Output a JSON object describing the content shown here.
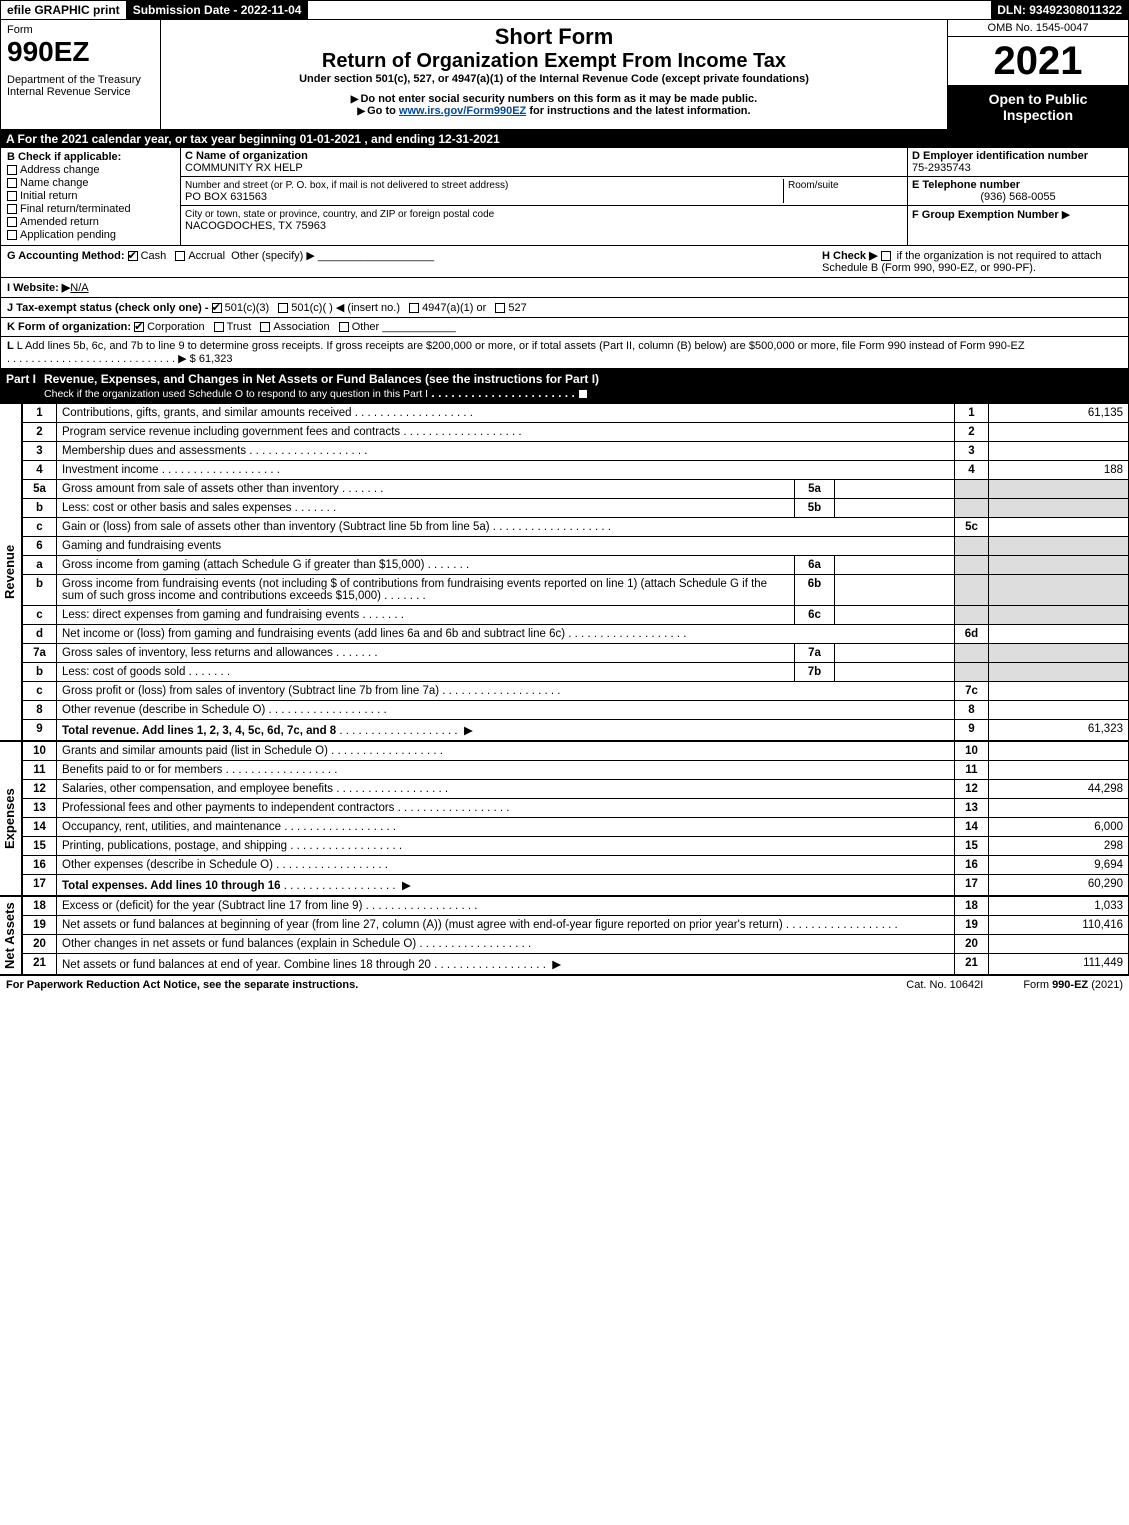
{
  "topbar": {
    "efile": "efile GRAPHIC print",
    "submission": "Submission Date - 2022-11-04",
    "dln": "DLN: 93492308011322"
  },
  "header": {
    "form_word": "Form",
    "form_no": "990EZ",
    "dept1": "Department of the Treasury",
    "dept2": "Internal Revenue Service",
    "short": "Short Form",
    "title": "Return of Organization Exempt From Income Tax",
    "sub1": "Under section 501(c), 527, or 4947(a)(1) of the Internal Revenue Code (except private foundations)",
    "sub2": "Do not enter social security numbers on this form as it may be made public.",
    "sub3_pre": "Go to ",
    "sub3_link": "www.irs.gov/Form990EZ",
    "sub3_post": " for instructions and the latest information.",
    "omb": "OMB No. 1545-0047",
    "year": "2021",
    "open": "Open to Public Inspection"
  },
  "row_a": "A  For the 2021 calendar year, or tax year beginning 01-01-2021 , and ending 12-31-2021",
  "sec_b": {
    "label": "B  Check if applicable:",
    "checks": [
      "Address change",
      "Name change",
      "Initial return",
      "Final return/terminated",
      "Amended return",
      "Application pending"
    ],
    "c_label": "C Name of organization",
    "c_name": "COMMUNITY RX HELP",
    "addr_label": "Number and street (or P. O. box, if mail is not delivered to street address)",
    "addr": "PO BOX 631563",
    "room_label": "Room/suite",
    "city_label": "City or town, state or province, country, and ZIP or foreign postal code",
    "city": "NACOGDOCHES, TX  75963",
    "d_label": "D Employer identification number",
    "d_val": "75-2935743",
    "e_label": "E Telephone number",
    "e_val": "(936) 568-0055",
    "f_label": "F Group Exemption Number",
    "f_arrow": "▶"
  },
  "gih": {
    "g": "G Accounting Method:",
    "g_cash": "Cash",
    "g_accrual": "Accrual",
    "g_other": "Other (specify) ▶",
    "h": "H  Check ▶",
    "h_text": "if the organization is not required to attach Schedule B (Form 990, 990-EZ, or 990-PF).",
    "i": "I Website: ▶",
    "i_val": "N/A",
    "j": "J Tax-exempt status (check only one) -",
    "j_opts": [
      "501(c)(3)",
      "501(c)(  ) ◀ (insert no.)",
      "4947(a)(1) or",
      "527"
    ]
  },
  "k": "K Form of organization:",
  "k_opts": [
    "Corporation",
    "Trust",
    "Association",
    "Other"
  ],
  "l": "L Add lines 5b, 6c, and 7b to line 9 to determine gross receipts. If gross receipts are $200,000 or more, or if total assets (Part II, column (B) below) are $500,000 or more, file Form 990 instead of Form 990-EZ",
  "l_amt": "▶ $ 61,323",
  "part1_title": "Revenue, Expenses, and Changes in Net Assets or Fund Balances (see the instructions for Part I)",
  "part1_sub": "Check if the organization used Schedule O to respond to any question in this Part I",
  "revenue_rows": [
    {
      "no": "1",
      "desc": "Contributions, gifts, grants, and similar amounts received",
      "ln": "1",
      "amt": "61,135"
    },
    {
      "no": "2",
      "desc": "Program service revenue including government fees and contracts",
      "ln": "2",
      "amt": ""
    },
    {
      "no": "3",
      "desc": "Membership dues and assessments",
      "ln": "3",
      "amt": ""
    },
    {
      "no": "4",
      "desc": "Investment income",
      "ln": "4",
      "amt": "188"
    },
    {
      "no": "5a",
      "desc": "Gross amount from sale of assets other than inventory",
      "inner": "5a",
      "innerval": "",
      "shade": true
    },
    {
      "no": "b",
      "desc": "Less: cost or other basis and sales expenses",
      "inner": "5b",
      "innerval": "",
      "shade": true
    },
    {
      "no": "c",
      "desc": "Gain or (loss) from sale of assets other than inventory (Subtract line 5b from line 5a)",
      "ln": "5c",
      "amt": ""
    },
    {
      "no": "6",
      "desc": "Gaming and fundraising events",
      "shade_all": true
    },
    {
      "no": "a",
      "desc": "Gross income from gaming (attach Schedule G if greater than $15,000)",
      "inner": "6a",
      "innerval": "",
      "shade": true
    },
    {
      "no": "b",
      "desc": "Gross income from fundraising events (not including $                      of contributions from fundraising events reported on line 1) (attach Schedule G if the sum of such gross income and contributions exceeds $15,000)",
      "inner": "6b",
      "innerval": "",
      "shade": true
    },
    {
      "no": "c",
      "desc": "Less: direct expenses from gaming and fundraising events",
      "inner": "6c",
      "innerval": "",
      "shade": true
    },
    {
      "no": "d",
      "desc": "Net income or (loss) from gaming and fundraising events (add lines 6a and 6b and subtract line 6c)",
      "ln": "6d",
      "amt": ""
    },
    {
      "no": "7a",
      "desc": "Gross sales of inventory, less returns and allowances",
      "inner": "7a",
      "innerval": "",
      "shade": true
    },
    {
      "no": "b",
      "desc": "Less: cost of goods sold",
      "inner": "7b",
      "innerval": "",
      "shade": true
    },
    {
      "no": "c",
      "desc": "Gross profit or (loss) from sales of inventory (Subtract line 7b from line 7a)",
      "ln": "7c",
      "amt": ""
    },
    {
      "no": "8",
      "desc": "Other revenue (describe in Schedule O)",
      "ln": "8",
      "amt": ""
    },
    {
      "no": "9",
      "desc": "Total revenue. Add lines 1, 2, 3, 4, 5c, 6d, 7c, and 8",
      "ln": "9",
      "amt": "61,323",
      "bold": true,
      "arrow": true
    }
  ],
  "expense_rows": [
    {
      "no": "10",
      "desc": "Grants and similar amounts paid (list in Schedule O)",
      "ln": "10",
      "amt": ""
    },
    {
      "no": "11",
      "desc": "Benefits paid to or for members",
      "ln": "11",
      "amt": ""
    },
    {
      "no": "12",
      "desc": "Salaries, other compensation, and employee benefits",
      "ln": "12",
      "amt": "44,298"
    },
    {
      "no": "13",
      "desc": "Professional fees and other payments to independent contractors",
      "ln": "13",
      "amt": ""
    },
    {
      "no": "14",
      "desc": "Occupancy, rent, utilities, and maintenance",
      "ln": "14",
      "amt": "6,000"
    },
    {
      "no": "15",
      "desc": "Printing, publications, postage, and shipping",
      "ln": "15",
      "amt": "298"
    },
    {
      "no": "16",
      "desc": "Other expenses (describe in Schedule O)",
      "ln": "16",
      "amt": "9,694"
    },
    {
      "no": "17",
      "desc": "Total expenses. Add lines 10 through 16",
      "ln": "17",
      "amt": "60,290",
      "bold": true,
      "arrow": true
    }
  ],
  "netasset_rows": [
    {
      "no": "18",
      "desc": "Excess or (deficit) for the year (Subtract line 17 from line 9)",
      "ln": "18",
      "amt": "1,033"
    },
    {
      "no": "19",
      "desc": "Net assets or fund balances at beginning of year (from line 27, column (A)) (must agree with end-of-year figure reported on prior year's return)",
      "ln": "19",
      "amt": "110,416"
    },
    {
      "no": "20",
      "desc": "Other changes in net assets or fund balances (explain in Schedule O)",
      "ln": "20",
      "amt": ""
    },
    {
      "no": "21",
      "desc": "Net assets or fund balances at end of year. Combine lines 18 through 20",
      "ln": "21",
      "amt": "111,449",
      "arrow": true
    }
  ],
  "side_labels": {
    "rev": "Revenue",
    "exp": "Expenses",
    "net": "Net Assets"
  },
  "footer": {
    "left": "For Paperwork Reduction Act Notice, see the separate instructions.",
    "mid": "Cat. No. 10642I",
    "right": "Form 990-EZ (2021)"
  },
  "colors": {
    "black": "#000000",
    "white": "#ffffff",
    "shade": "#dddddd",
    "link": "#004b9b"
  }
}
